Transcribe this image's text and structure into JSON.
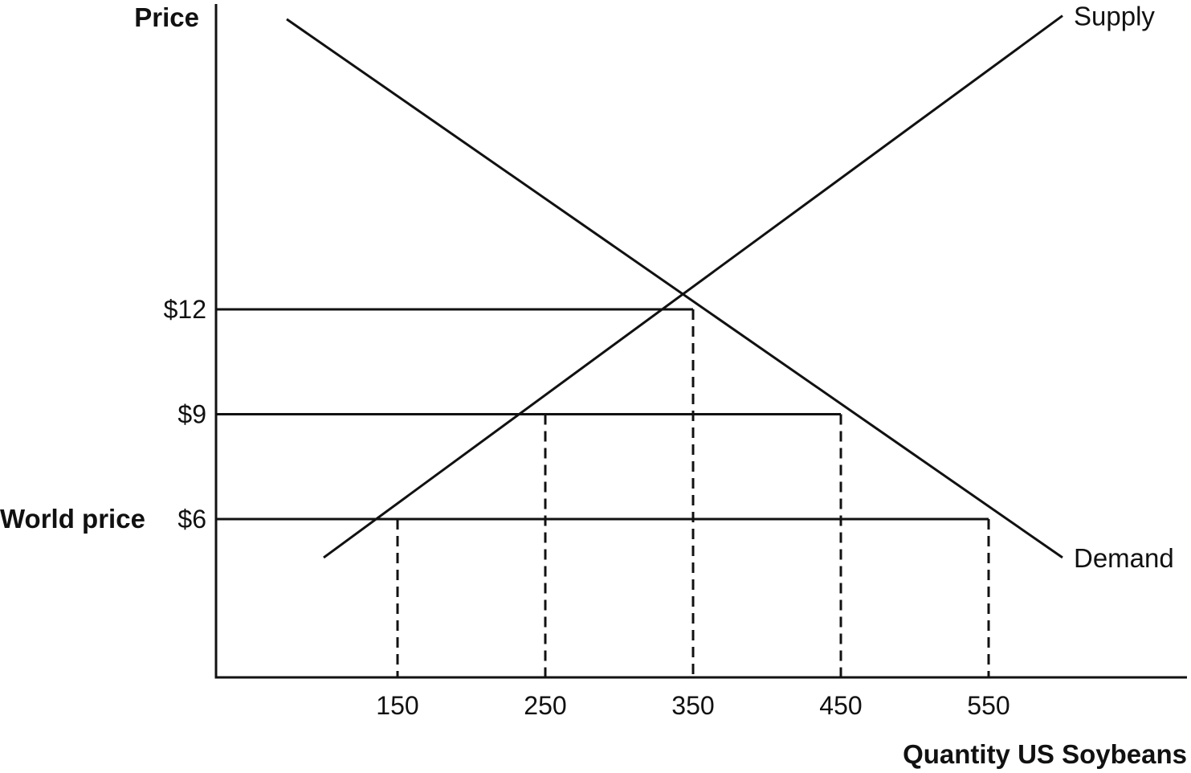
{
  "chart_data": {
    "type": "line",
    "xlabel": "Quantity US Soybeans",
    "ylabel": "Price",
    "x_ticks": [
      150,
      250,
      350,
      450,
      550
    ],
    "x_tick_labels": [
      "150",
      "250",
      "350",
      "450",
      "550"
    ],
    "y_ticks": [
      6,
      9,
      12
    ],
    "y_tick_labels": [
      "$6",
      "$9",
      "$12"
    ],
    "xlim": [
      20,
      720
    ],
    "ylim": [
      1.5,
      20.8
    ],
    "grid": false,
    "series": [
      {
        "name": "Supply",
        "x": [
          100,
          600
        ],
        "y": [
          4.9,
          20.4
        ],
        "color": "#111111",
        "style": "solid"
      },
      {
        "name": "Demand",
        "x": [
          75,
          600
        ],
        "y": [
          20.3,
          4.9
        ],
        "color": "#111111",
        "style": "solid"
      }
    ],
    "price_lines": [
      {
        "y": 12,
        "x_end": 350
      },
      {
        "y": 9,
        "x_end": 450
      },
      {
        "y": 6,
        "x_end": 550
      }
    ],
    "quantity_guides": [
      {
        "x": 150,
        "y_top": 6
      },
      {
        "x": 250,
        "y_top": 9
      },
      {
        "x": 350,
        "y_top": 12
      },
      {
        "x": 450,
        "y_top": 9
      },
      {
        "x": 550,
        "y_top": 6
      }
    ],
    "annotations": [
      {
        "text": "World price",
        "y": 6
      }
    ]
  }
}
